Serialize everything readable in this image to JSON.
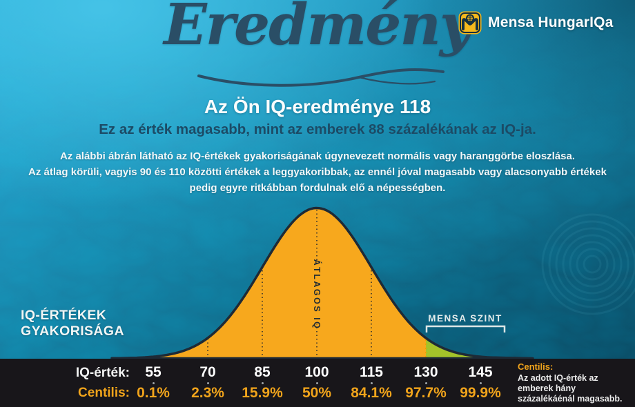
{
  "brand": {
    "name": "Mensa HungarIQa"
  },
  "header": {
    "script_title": "Eredmény"
  },
  "result": {
    "headline": "Az Ön IQ-eredménye 118",
    "subheadline": "Ez az érték magasabb, mint az emberek 88 százalékának az IQ-ja.",
    "description_lines": [
      "Az alábbi ábrán látható az IQ-értékek gyakoriságának úgynevezett normális vagy haranggörbe eloszlása.",
      "Az átlag körüli, vagyis 90 és 110 közötti értékek a leggyakoribbak, az ennél jóval magasabb vagy alacsonyabb értékek",
      "pedig egyre ritkábban fordulnak elő a népességben."
    ]
  },
  "chart": {
    "side_label_lines": [
      "IQ-ÉRTÉKEK",
      "GYAKORISÁGA"
    ],
    "average_label": "ÁTLAGOS IQ",
    "mensa_label": "MENSA SZINT"
  },
  "chart_data": {
    "type": "area",
    "title": "IQ-értékek gyakorisága — normális (haranggörbe) eloszlás",
    "distribution": {
      "mean": 100,
      "sd": 15
    },
    "x_ticks": [
      55,
      70,
      85,
      100,
      115,
      130,
      145
    ],
    "centiles_percent": [
      0.1,
      2.3,
      15.9,
      50,
      84.1,
      97.7,
      99.9
    ],
    "mensa_threshold": 130,
    "user_iq": 118,
    "user_percentile": 88,
    "xlim": [
      52,
      148
    ],
    "curve_color": "#F7A81D",
    "mensa_area_color": "#A3C32A",
    "outline_color": "#1E2A36",
    "tick_line_color": "#2E2E2E",
    "threshold_line_color": "#F09F00"
  },
  "table": {
    "iq_label": "IQ-érték:",
    "centile_label": "Centilis:",
    "rows": [
      {
        "iq": "55",
        "centile": "0.1%"
      },
      {
        "iq": "70",
        "centile": "2.3%"
      },
      {
        "iq": "85",
        "centile": "15.9%"
      },
      {
        "iq": "100",
        "centile": "50%"
      },
      {
        "iq": "115",
        "centile": "84.1%"
      },
      {
        "iq": "130",
        "centile": "97.7%"
      },
      {
        "iq": "145",
        "centile": "99.9%"
      }
    ]
  },
  "legend": {
    "title": "Centilis:",
    "text": "Az adott IQ-érték az emberek hány százalékáénál magasabb."
  },
  "colors": {
    "accent_orange": "#F1A41B",
    "mensa_green": "#A3C32A",
    "headline_dark": "#1C4B66",
    "logo_yellow": "#F5B81C"
  }
}
